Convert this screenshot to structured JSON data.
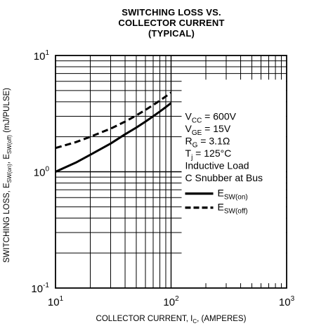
{
  "chart_data": {
    "type": "line",
    "title": [
      "SWITCHING LOSS VS.",
      "COLLECTOR CURRENT",
      "(TYPICAL)"
    ],
    "xlabel": {
      "text": "COLLECTOR CURRENT, I",
      "sub": "C",
      "suffix": ", (AMPERES)"
    },
    "ylabel": {
      "text": "SWITCHING LOSS, E",
      "sub1": "SW(on)",
      "mid": ", E",
      "sub2": "SW(off)",
      "suffix": " (mJ/PULSE)"
    },
    "x_scale": "log",
    "y_scale": "log",
    "xlim": [
      10,
      1000
    ],
    "ylim": [
      0.1,
      10
    ],
    "x_ticks": [
      {
        "base": "10",
        "exp": "1"
      },
      {
        "base": "10",
        "exp": "2"
      },
      {
        "base": "10",
        "exp": "3"
      }
    ],
    "y_ticks": [
      {
        "base": "10",
        "exp": "-1"
      },
      {
        "base": "10",
        "exp": "0"
      },
      {
        "base": "10",
        "exp": "1"
      }
    ],
    "grid": true,
    "series": [
      {
        "name": "E_SW(on)",
        "style": "solid",
        "x": [
          10,
          15,
          20,
          30,
          40,
          50,
          60,
          70,
          80,
          90,
          100
        ],
        "y": [
          1.0,
          1.2,
          1.4,
          1.75,
          2.1,
          2.4,
          2.7,
          3.0,
          3.3,
          3.6,
          3.9
        ]
      },
      {
        "name": "E_SW(off)",
        "style": "dashed",
        "x": [
          10,
          15,
          20,
          30,
          40,
          50,
          60,
          70,
          80,
          90,
          100
        ],
        "y": [
          1.6,
          1.8,
          2.0,
          2.35,
          2.7,
          3.05,
          3.4,
          3.75,
          4.1,
          4.45,
          4.8
        ]
      }
    ],
    "conditions": [
      {
        "base": "V",
        "sub": "CC",
        "rest": " = 600V"
      },
      {
        "base": "V",
        "sub": "GE",
        "rest": " = 15V"
      },
      {
        "base": "R",
        "sub": "G",
        "rest": " = 3.1Ω"
      },
      {
        "base": "T",
        "sub": "j",
        "rest": " = 125°C"
      },
      {
        "base": "Inductive Load",
        "sub": "",
        "rest": ""
      },
      {
        "base": "C Snubber at Bus",
        "sub": "",
        "rest": ""
      }
    ],
    "legend": [
      {
        "base": "E",
        "sub": "SW(on)",
        "style": "solid"
      },
      {
        "base": "E",
        "sub": "SW(off)",
        "style": "dashed"
      }
    ]
  }
}
